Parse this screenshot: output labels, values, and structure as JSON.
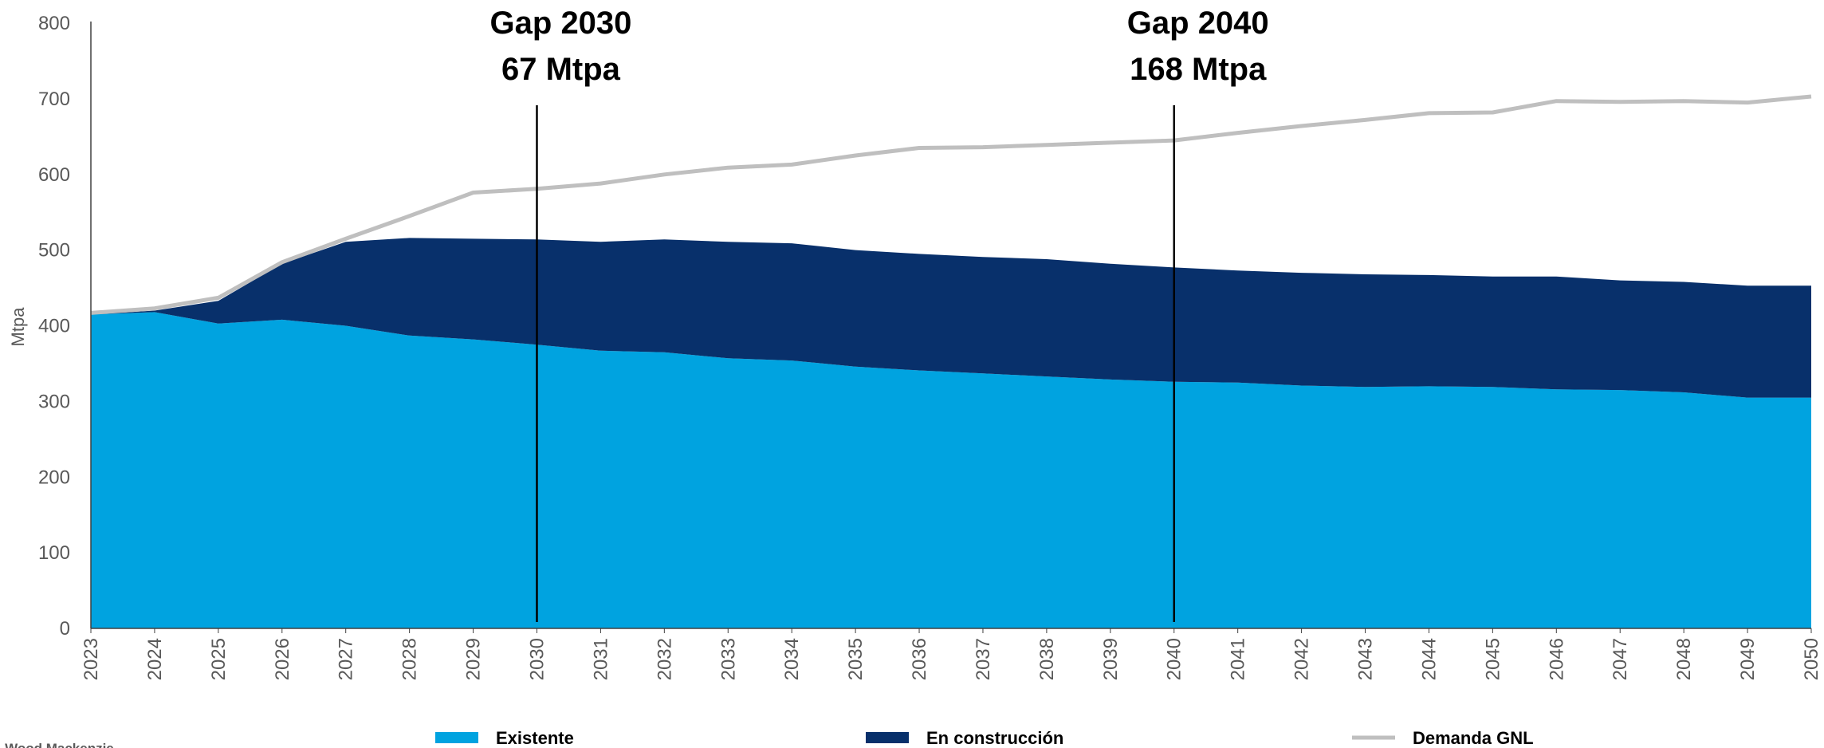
{
  "chart_data": {
    "type": "area",
    "ylabel": "Mtpa",
    "ylim": [
      0,
      800
    ],
    "yticks": [
      0,
      100,
      200,
      300,
      400,
      500,
      600,
      700,
      800
    ],
    "categories": [
      "2023",
      "2024",
      "2025",
      "2026",
      "2027",
      "2028",
      "2029",
      "2030",
      "2031",
      "2032",
      "2033",
      "2034",
      "2035",
      "2036",
      "2037",
      "2038",
      "2039",
      "2040",
      "2041",
      "2042",
      "2043",
      "2044",
      "2045",
      "2046",
      "2047",
      "2048",
      "2049",
      "2050"
    ],
    "series": [
      {
        "name": "Existente",
        "kind": "stacked-area",
        "color": "#00A3E0",
        "values": [
          415,
          418,
          403,
          408,
          400,
          387,
          382,
          375,
          367,
          365,
          357,
          354,
          346,
          341,
          337,
          333,
          329,
          326,
          325,
          321,
          319,
          320,
          319,
          316,
          315,
          312,
          305,
          305
        ]
      },
      {
        "name": "En construcción",
        "kind": "stacked-area",
        "color": "#08306B",
        "values": [
          0,
          2,
          30,
          74,
          111,
          129,
          133,
          139,
          144,
          149,
          154,
          155,
          154,
          154,
          154,
          155,
          153,
          151,
          148,
          149,
          149,
          147,
          146,
          149,
          145,
          146,
          148,
          148
        ]
      },
      {
        "name": "Demanda GNL",
        "kind": "line",
        "color": "#BFBFBF",
        "values": [
          417,
          423,
          437,
          484,
          515,
          545,
          576,
          581,
          588,
          600,
          609,
          613,
          625,
          635,
          636,
          639,
          642,
          645,
          655,
          664,
          672,
          681,
          682,
          697,
          696,
          697,
          695,
          703
        ]
      }
    ],
    "annotations": [
      {
        "year": "2030",
        "lines": [
          "Gap 2030",
          "67 Mtpa"
        ]
      },
      {
        "year": "2040",
        "lines": [
          "Gap 2040",
          "168 Mtpa"
        ]
      }
    ],
    "legend_position": "bottom",
    "grid": false
  },
  "source": "Fuente: Wood Mackenzie"
}
